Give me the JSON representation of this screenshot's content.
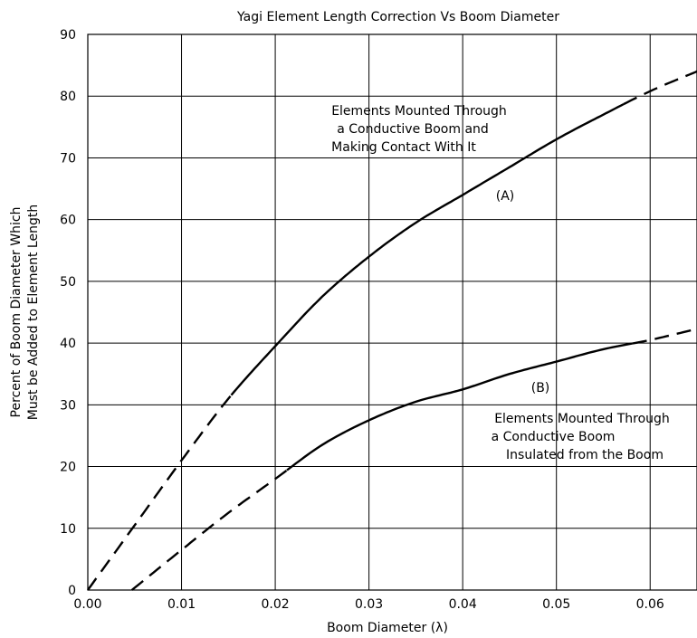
{
  "chart_data": {
    "type": "line",
    "title": "Yagi Element Length Correction Vs Boom Diameter",
    "xlabel": "Boom Diameter (λ)",
    "ylabel_lines": [
      "Percent of Boom Diameter Which",
      "Must be Added to Element Length"
    ],
    "xlim": [
      0,
      0.065
    ],
    "ylim": [
      0,
      90
    ],
    "x_ticks": [
      "0.00",
      "0.01",
      "0.02",
      "0.03",
      "0.04",
      "0.05",
      "0.06"
    ],
    "y_ticks": [
      "0",
      "10",
      "20",
      "30",
      "40",
      "50",
      "60",
      "70",
      "80",
      "90"
    ],
    "grid": true,
    "series": [
      {
        "name": "(A)",
        "points": [
          [
            0.0,
            0.0
          ],
          [
            0.005,
            10.5
          ],
          [
            0.01,
            21.0
          ],
          [
            0.015,
            31.0
          ],
          [
            0.02,
            39.5
          ],
          [
            0.025,
            47.5
          ],
          [
            0.03,
            54.0
          ],
          [
            0.035,
            59.5
          ],
          [
            0.04,
            64.0
          ],
          [
            0.045,
            68.5
          ],
          [
            0.05,
            73.0
          ],
          [
            0.055,
            77.0
          ],
          [
            0.06,
            80.8
          ],
          [
            0.065,
            84.0
          ]
        ],
        "dashed_ranges": [
          [
            0.0,
            0.015
          ],
          [
            0.057,
            0.065
          ]
        ]
      },
      {
        "name": "(B)",
        "points": [
          [
            0.0047,
            0.0
          ],
          [
            0.01,
            6.5
          ],
          [
            0.015,
            12.5
          ],
          [
            0.02,
            18.0
          ],
          [
            0.025,
            23.5
          ],
          [
            0.03,
            27.5
          ],
          [
            0.035,
            30.5
          ],
          [
            0.04,
            32.5
          ],
          [
            0.045,
            35.0
          ],
          [
            0.05,
            37.0
          ],
          [
            0.055,
            39.0
          ],
          [
            0.06,
            40.5
          ],
          [
            0.065,
            42.3
          ]
        ],
        "dashed_ranges": [
          [
            0.0047,
            0.021
          ],
          [
            0.058,
            0.065
          ]
        ]
      }
    ],
    "annotations": [
      {
        "id": "a1",
        "text": "Elements Mounted Through"
      },
      {
        "id": "a2",
        "text": "a Conductive Boom and"
      },
      {
        "id": "a3",
        "text": "Making Contact With It"
      },
      {
        "id": "a4",
        "text": "(A)"
      },
      {
        "id": "b1",
        "text": "(B)"
      },
      {
        "id": "b2",
        "text": "Elements Mounted Through"
      },
      {
        "id": "b3",
        "text": "a Conductive Boom"
      },
      {
        "id": "b4",
        "text": "Insulated from the Boom"
      }
    ]
  }
}
